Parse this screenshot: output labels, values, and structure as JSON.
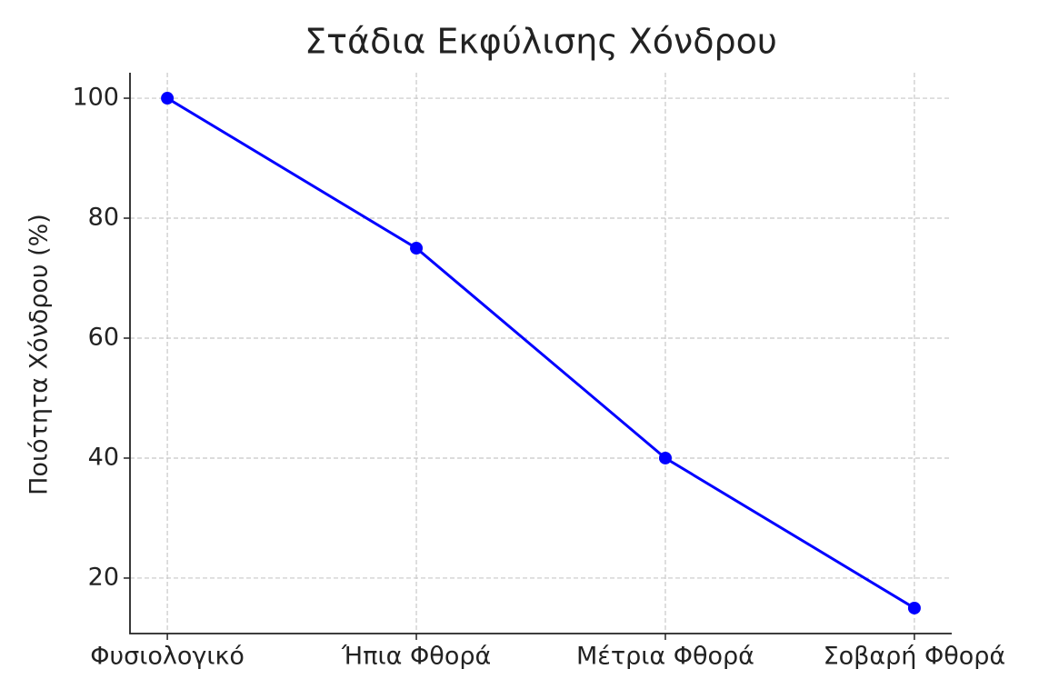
{
  "chart_data": {
    "type": "line",
    "title": "Στάδια Εκφύλισης Χόνδρου",
    "y_label": "Ποιότητα Χόνδρου (%)",
    "categories": [
      "Φυσιολογικό",
      "Ήπια Φθορά",
      "Μέτρια Φθορά",
      "Σοβαρή Φθορά"
    ],
    "series": [
      {
        "color": "#0000ff",
        "values": [
          100,
          75,
          40,
          15
        ]
      }
    ],
    "ylim": [
      10.75,
      104.25
    ],
    "yticks": [
      20,
      40,
      60,
      80,
      100
    ],
    "grid": true
  }
}
